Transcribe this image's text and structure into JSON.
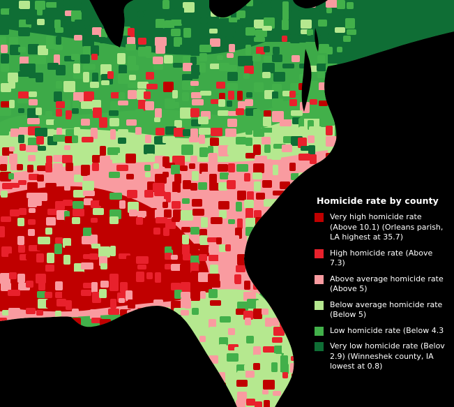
{
  "legend": {
    "title": "Homicide rate by county",
    "items": [
      {
        "label": "Very high homicide rate\n(Above 10.1) (Orleans parish,\nLA highest at 35.7)",
        "color": "#c00000"
      },
      {
        "label": "High homicide rate (Above\n7.3)",
        "color": "#e8212c"
      },
      {
        "label": "Above average homicide rate\n(Above 5)",
        "color": "#f99ba0"
      },
      {
        "label": "Below average homicide rate\n(Below 5)",
        "color": "#b5e88f"
      },
      {
        "label": "Low homicide rate (Below 4.3",
        "color": "#42b04a"
      },
      {
        "label": "Very low homicide rate (Belov\n2.9) (Winneshek county, IA\nlowest at 0.8)",
        "color": "#0f6e35"
      }
    ]
  },
  "colors": {
    "background": "#000000",
    "water": "#000000",
    "very_high": "#c00000",
    "high": "#e8212c",
    "above_average": "#f99ba0",
    "below_average": "#b5e88f",
    "low": "#42b04a",
    "very_low": "#0f6e35"
  }
}
